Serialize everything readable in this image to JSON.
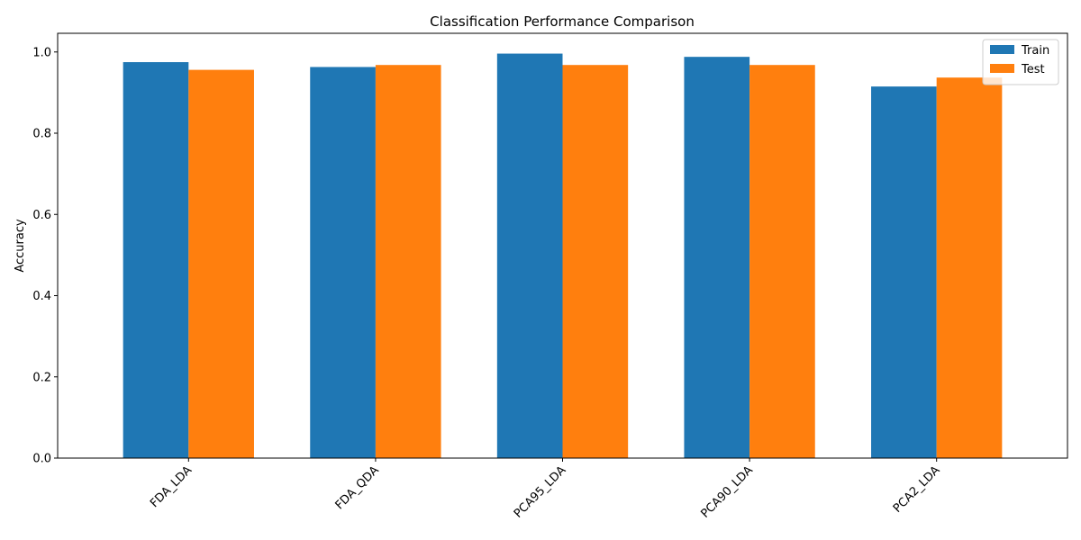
{
  "chart_data": {
    "type": "bar",
    "title": "Classification Performance Comparison",
    "xlabel": "",
    "ylabel": "Accuracy",
    "categories": [
      "FDA_LDA",
      "FDA_QDA",
      "PCA95_LDA",
      "PCA90_LDA",
      "PCA2_LDA"
    ],
    "series": [
      {
        "name": "Train",
        "color": "#1f77b4",
        "values": [
          0.975,
          0.963,
          0.996,
          0.988,
          0.915
        ]
      },
      {
        "name": "Test",
        "color": "#ff7f0e",
        "values": [
          0.956,
          0.968,
          0.968,
          0.968,
          0.937
        ]
      }
    ],
    "ylim": [
      0,
      1.046
    ],
    "yticks": [
      0.0,
      0.2,
      0.4,
      0.6,
      0.8,
      1.0
    ],
    "ytick_labels": [
      "0.0",
      "0.2",
      "0.4",
      "0.6",
      "0.8",
      "1.0"
    ],
    "legend_position": "top-right",
    "xtick_rotation_deg": 45,
    "grid": false
  }
}
